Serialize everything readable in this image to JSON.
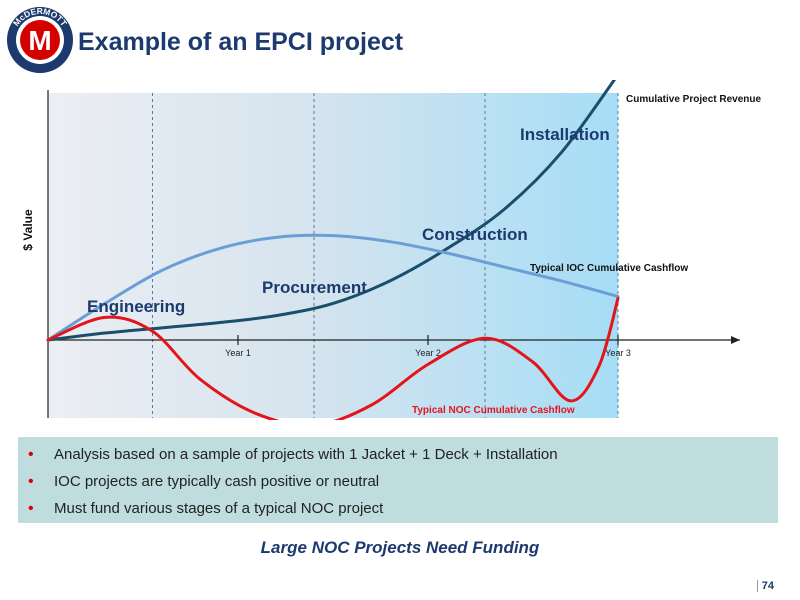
{
  "header": {
    "title": "Example of an EPCI project",
    "logo_text": "McDERMOTT",
    "logo_letter": "M"
  },
  "chart_data": {
    "type": "line",
    "ylabel": "$ Value",
    "x_ticks": [
      "Year 1",
      "Year 2",
      "Year 3"
    ],
    "xlim": [
      0,
      3
    ],
    "ylim": [
      -1,
      3
    ],
    "phases": [
      "Engineering",
      "Procurement",
      "Construction",
      "Installation"
    ],
    "series": [
      {
        "name": "Cumulative Project Revenue",
        "color": "#1b4e6b",
        "x": [
          0,
          0.3,
          0.6,
          0.9,
          1.2,
          1.5,
          1.8,
          2.1,
          2.4,
          2.7,
          3.0
        ],
        "y": [
          0,
          0.08,
          0.14,
          0.2,
          0.28,
          0.42,
          0.68,
          1.05,
          1.5,
          2.15,
          3.05
        ]
      },
      {
        "name": "Typical IOC Cumulative Cashflow",
        "color": "#6a9fd6",
        "x": [
          0,
          0.3,
          0.6,
          0.9,
          1.2,
          1.5,
          1.8,
          2.1,
          2.4,
          2.7,
          3.0
        ],
        "y": [
          0,
          0.42,
          0.8,
          1.05,
          1.18,
          1.2,
          1.13,
          1.0,
          0.84,
          0.68,
          0.5
        ]
      },
      {
        "name": "Typical NOC Cumulative Cashflow",
        "color": "#e4141b",
        "x": [
          0,
          0.3,
          0.55,
          0.8,
          1.1,
          1.4,
          1.7,
          2.0,
          2.3,
          2.55,
          2.75,
          2.9,
          3.0
        ],
        "y": [
          0,
          0.26,
          0.1,
          -0.45,
          -0.85,
          -0.98,
          -0.75,
          -0.28,
          0.02,
          -0.25,
          -0.7,
          -0.3,
          0.48
        ]
      }
    ]
  },
  "bullets": [
    "Analysis based on a sample of projects with 1 Jacket + 1 Deck + Installation",
    "IOC projects are typically cash positive or neutral",
    "Must fund various stages of a typical NOC project"
  ],
  "bullet_color": "#d40000",
  "tagline": "Large NOC Projects Need Funding",
  "page_number": "74"
}
